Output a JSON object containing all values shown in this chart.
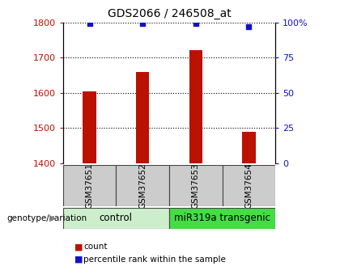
{
  "title": "GDS2066 / 246508_at",
  "samples": [
    "GSM37651",
    "GSM37652",
    "GSM37653",
    "GSM37654"
  ],
  "count_values": [
    1605,
    1660,
    1720,
    1490
  ],
  "percentile_values": [
    99,
    99,
    99,
    97
  ],
  "ylim_left": [
    1400,
    1800
  ],
  "yticks_left": [
    1400,
    1500,
    1600,
    1700,
    1800
  ],
  "ylim_right": [
    0,
    100
  ],
  "yticks_right": [
    0,
    25,
    50,
    75,
    100
  ],
  "ytick_right_labels": [
    "0",
    "25",
    "50",
    "75",
    "100%"
  ],
  "bar_color": "#bb1100",
  "dot_color": "#1111cc",
  "bar_width": 0.25,
  "groups": [
    {
      "label": "control",
      "samples": [
        0,
        1
      ],
      "color": "#cceecc"
    },
    {
      "label": "miR319a transgenic",
      "samples": [
        2,
        3
      ],
      "color": "#44dd44"
    }
  ],
  "legend_items": [
    {
      "label": "count",
      "color": "#bb1100"
    },
    {
      "label": "percentile rank within the sample",
      "color": "#1111cc"
    }
  ],
  "genotype_label": "genotype/variation",
  "sample_box_color": "#cccccc",
  "sample_box_border": "#444444",
  "plot_bg": "#ffffff",
  "fig_bg": "#ffffff"
}
